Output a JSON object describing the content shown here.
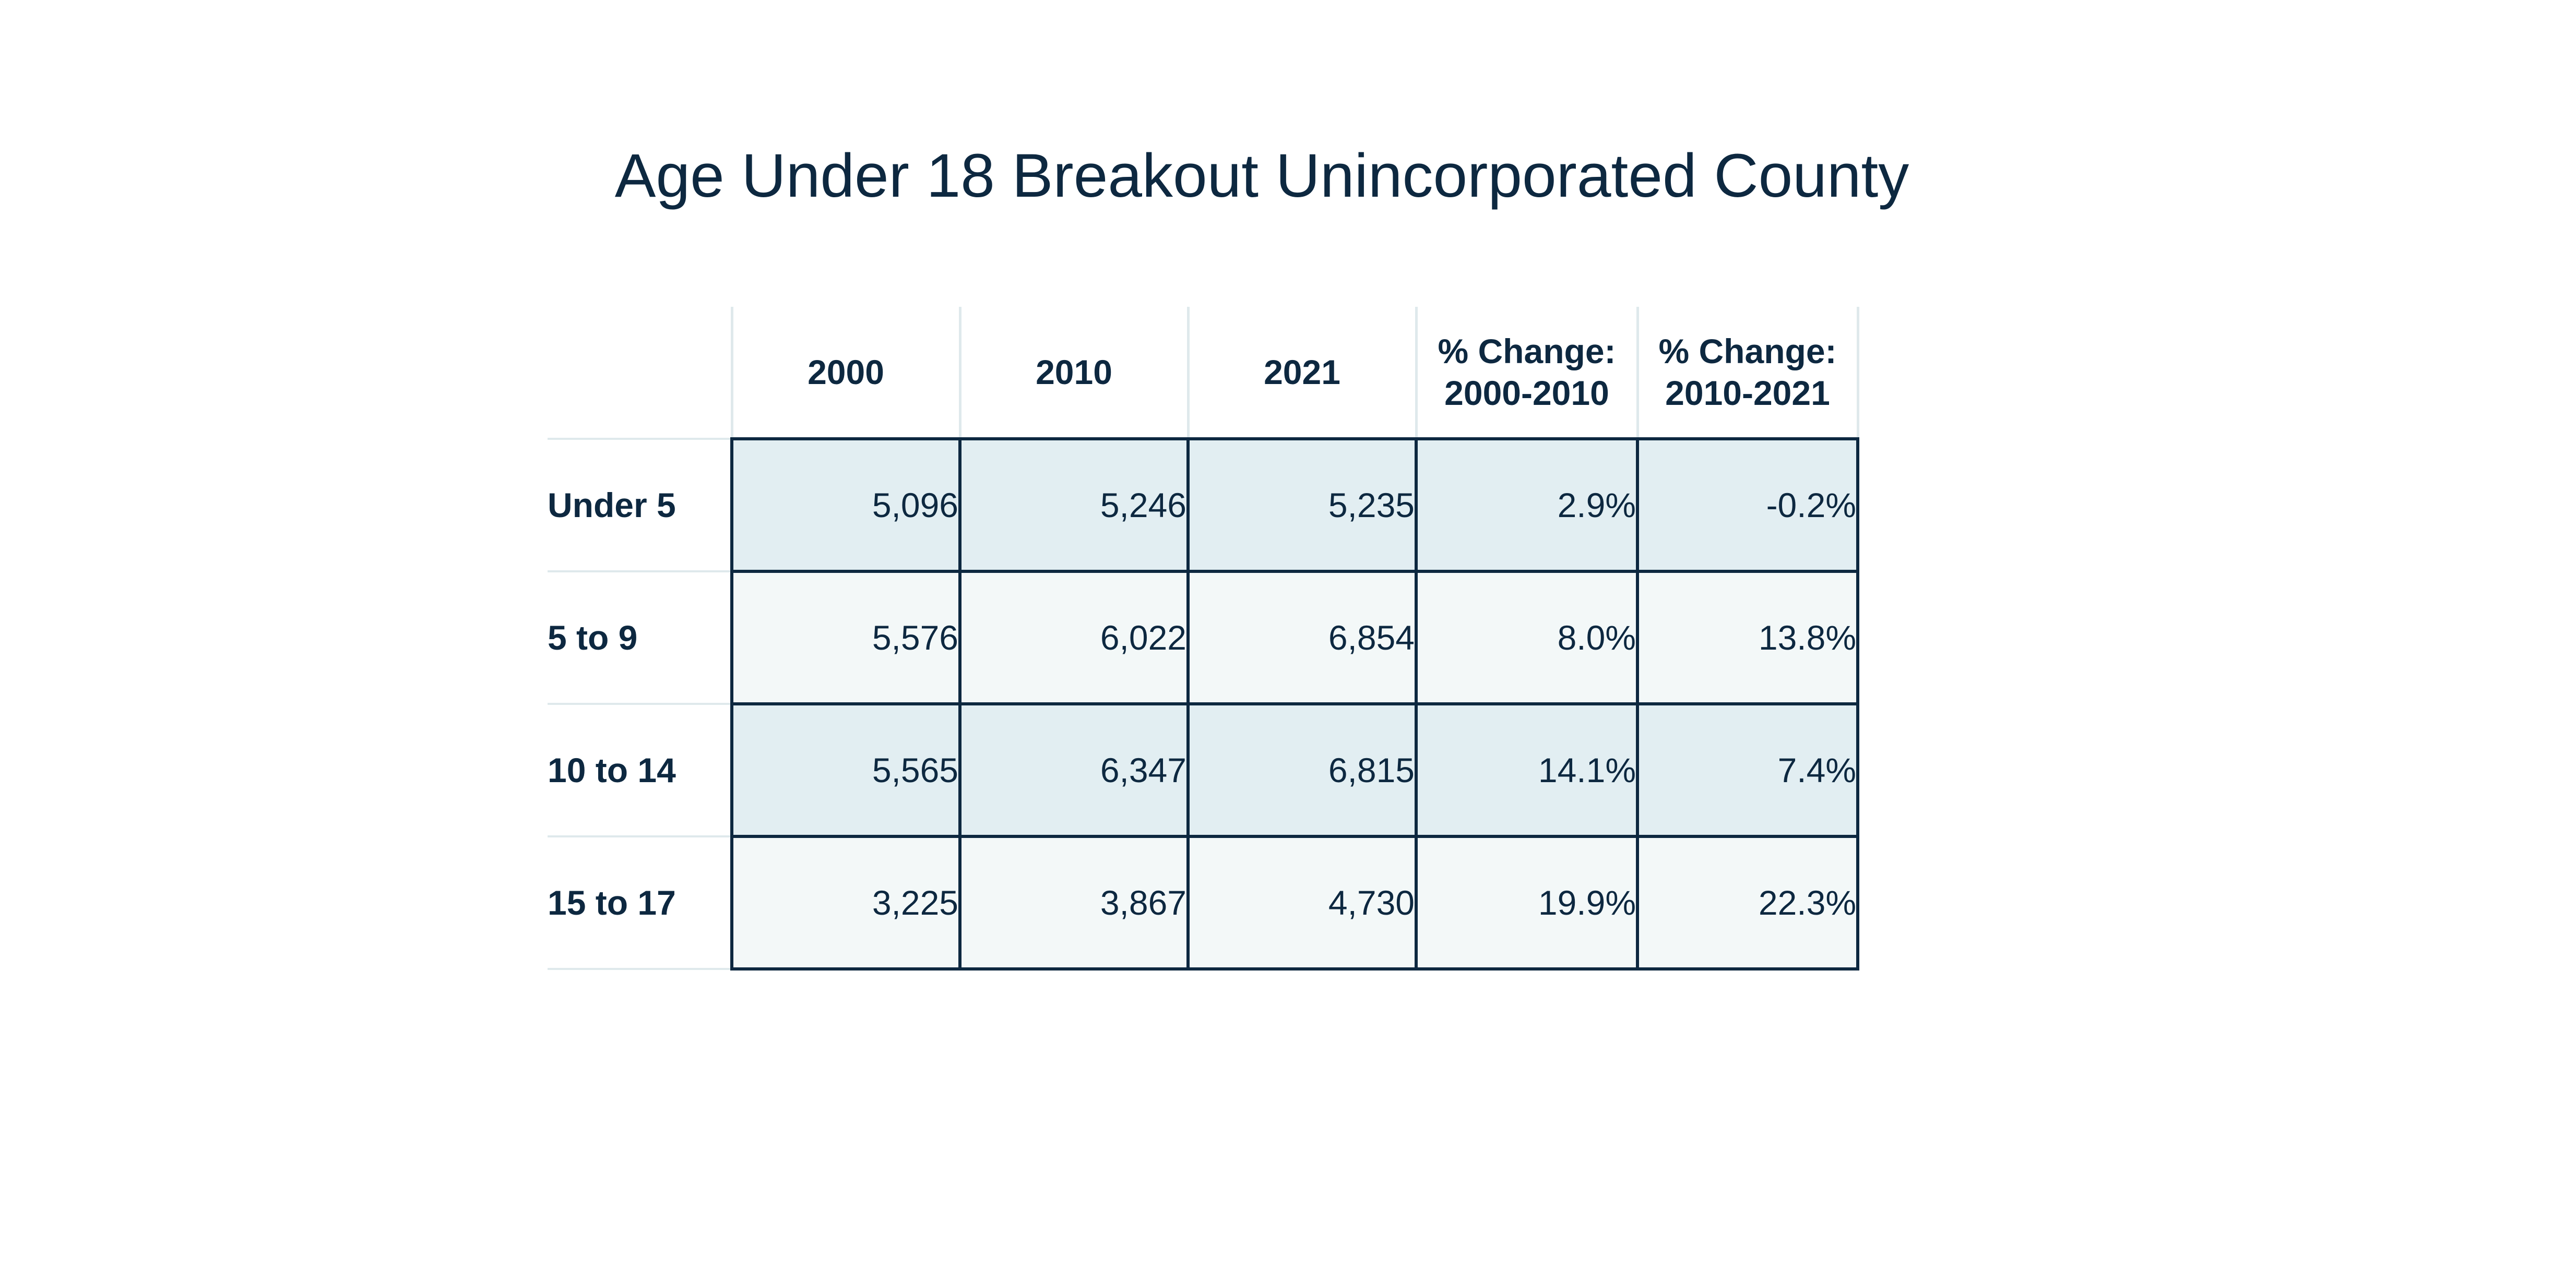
{
  "title": "Age Under 18 Breakout Unincorporated County",
  "table": {
    "headers": [
      [
        "2000"
      ],
      [
        "2010"
      ],
      [
        "2021"
      ],
      [
        "% Change:",
        "2000-2010"
      ],
      [
        "% Change:",
        "2010-2021"
      ]
    ],
    "rows": [
      {
        "label": "Under 5",
        "cells": [
          "5,096",
          "5,246",
          "5,235",
          "2.9%",
          "-0.2%"
        ]
      },
      {
        "label": "5 to 9",
        "cells": [
          "5,576",
          "6,022",
          "6,854",
          "8.0%",
          "13.8%"
        ]
      },
      {
        "label": "10 to 14",
        "cells": [
          "5,565",
          "6,347",
          "6,815",
          "14.1%",
          "7.4%"
        ]
      },
      {
        "label": "15 to 17",
        "cells": [
          "3,225",
          "3,867",
          "4,730",
          "19.9%",
          "22.3%"
        ]
      }
    ]
  },
  "colors": {
    "text": "#0d2840",
    "row_shade": "#e2eef2",
    "row_light": "#f3f8f8",
    "grid_light": "#dfe9ec",
    "grid_dark": "#0d2840"
  }
}
